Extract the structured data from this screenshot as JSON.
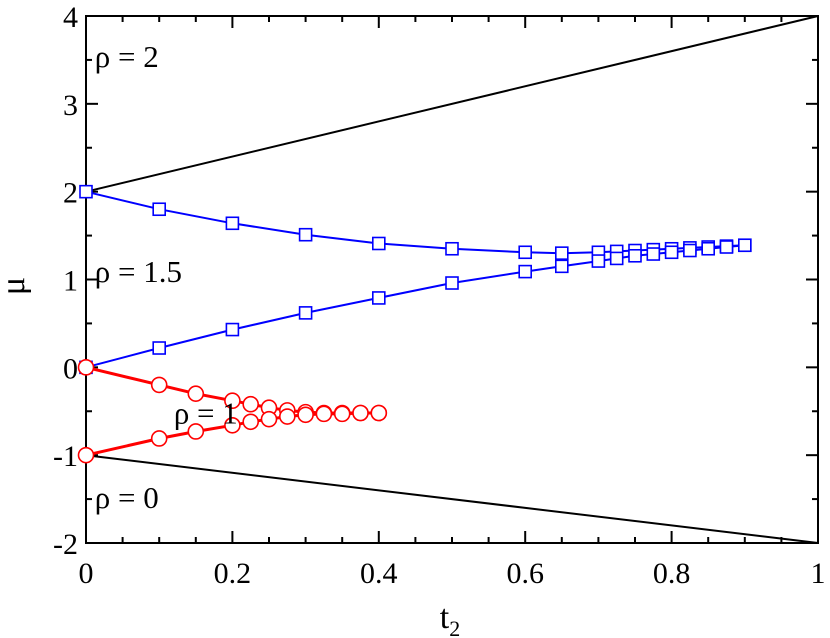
{
  "chart_data": {
    "type": "line",
    "title": "",
    "xlabel": "t",
    "xlabel_sub": "2",
    "ylabel": "μ",
    "xlim": [
      0,
      1
    ],
    "ylim": [
      -2,
      4
    ],
    "grid": false,
    "legend": "none",
    "x_ticks": [
      0,
      0.2,
      0.4,
      0.6,
      0.8,
      1
    ],
    "x_tick_labels": [
      "0",
      "0.2",
      "0.4",
      "0.6",
      "0.8",
      "1"
    ],
    "y_ticks": [
      -2,
      -1,
      0,
      1,
      2,
      3,
      4
    ],
    "y_tick_labels": [
      "-2",
      "-1",
      "0",
      "1",
      "2",
      "3",
      "4"
    ],
    "annotations": [
      {
        "text": "ρ = 2",
        "x": 0.012,
        "y": 3.42
      },
      {
        "text": "ρ = 1.5",
        "x": 0.012,
        "y": 0.97
      },
      {
        "text": "ρ = 1",
        "x": 0.12,
        "y": -0.64
      },
      {
        "text": "ρ = 0",
        "x": 0.012,
        "y": -1.6
      }
    ],
    "series": [
      {
        "color": "#000000",
        "marker": "none",
        "x": [
          0,
          1
        ],
        "y": [
          2,
          4
        ]
      },
      {
        "color": "#000000",
        "marker": "none",
        "x": [
          0,
          1
        ],
        "y": [
          -1,
          -2
        ]
      },
      {
        "color": "#0000ff",
        "marker": "square",
        "x": [
          0,
          0.1,
          0.2,
          0.3,
          0.4,
          0.5,
          0.6,
          0.65,
          0.7,
          0.725,
          0.75,
          0.775,
          0.8,
          0.825,
          0.85,
          0.875,
          0.9
        ],
        "y": [
          2.0,
          1.8,
          1.64,
          1.51,
          1.41,
          1.35,
          1.31,
          1.3,
          1.31,
          1.32,
          1.33,
          1.34,
          1.35,
          1.36,
          1.37,
          1.38,
          1.39
        ]
      },
      {
        "color": "#0000ff",
        "marker": "square",
        "x": [
          0,
          0.1,
          0.2,
          0.3,
          0.4,
          0.5,
          0.6,
          0.65,
          0.7,
          0.725,
          0.75,
          0.775,
          0.8,
          0.825,
          0.85,
          0.875,
          0.9
        ],
        "y": [
          0.0,
          0.22,
          0.43,
          0.62,
          0.79,
          0.96,
          1.09,
          1.15,
          1.21,
          1.24,
          1.27,
          1.29,
          1.31,
          1.33,
          1.35,
          1.37,
          1.39
        ]
      },
      {
        "color": "#ff0000",
        "marker": "circle",
        "x": [
          0,
          0.1,
          0.15,
          0.2,
          0.225,
          0.25,
          0.275,
          0.3,
          0.325,
          0.35,
          0.375,
          0.4
        ],
        "y": [
          0.0,
          -0.2,
          -0.3,
          -0.38,
          -0.42,
          -0.46,
          -0.49,
          -0.51,
          -0.52,
          -0.52,
          -0.52,
          -0.52
        ]
      },
      {
        "color": "#ff0000",
        "marker": "circle",
        "x": [
          0,
          0.1,
          0.15,
          0.2,
          0.225,
          0.25,
          0.275,
          0.3,
          0.325,
          0.35,
          0.375,
          0.4
        ],
        "y": [
          -1.0,
          -0.81,
          -0.73,
          -0.66,
          -0.62,
          -0.59,
          -0.56,
          -0.54,
          -0.53,
          -0.53,
          -0.52,
          -0.52
        ]
      }
    ]
  }
}
